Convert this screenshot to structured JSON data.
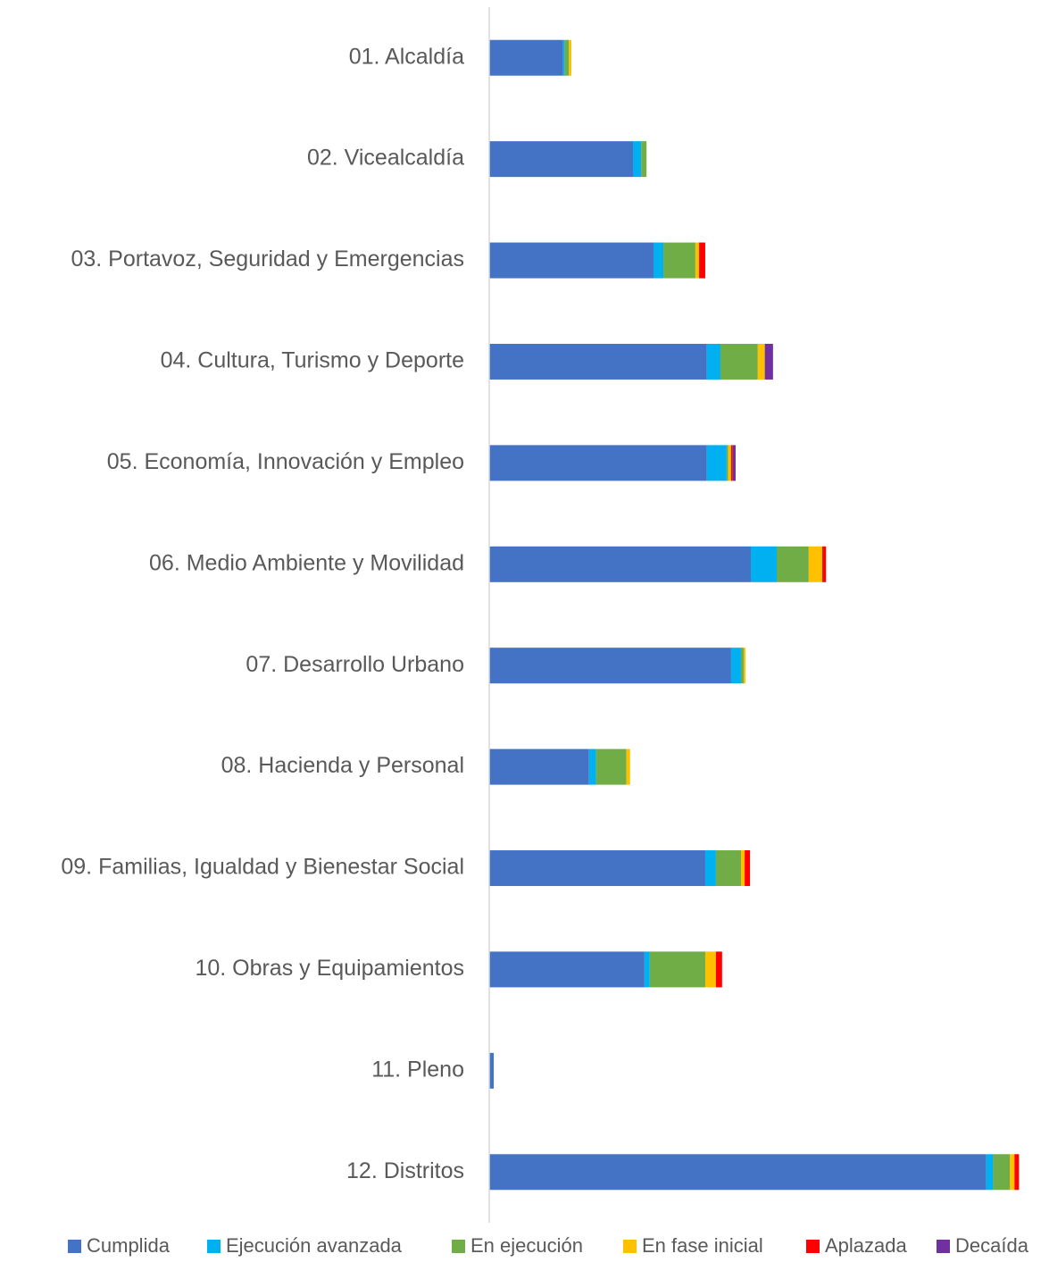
{
  "chart_data": {
    "type": "stacked_barh",
    "categories": [
      "01. Alcaldía",
      "02. Vicealcaldía",
      "03. Portavoz, Seguridad y Emergencias",
      "04. Cultura, Turismo y Deporte",
      "05. Economía, Innovación y Empleo",
      "06. Medio Ambiente y Movilidad",
      "07. Desarrollo Urbano",
      "08. Hacienda y Personal",
      "09. Familias, Igualdad y Bienestar Social",
      "10. Obras y Equipamientos",
      "11. Pleno",
      "12. Distritos"
    ],
    "series": [
      {
        "name": "Cumplida",
        "color": "#4472c4",
        "values": [
          18,
          35,
          40,
          53,
          53,
          63.7,
          58.9,
          24.3,
          52.6,
          37.8,
          1.1,
          121
        ]
      },
      {
        "name": "Ejecución avanzada",
        "color": "#00b0f0",
        "values": [
          0.4,
          2,
          2.4,
          3.3,
          4.8,
          6.3,
          2.4,
          1.7,
          2.6,
          1.3,
          0,
          1.7
        ]
      },
      {
        "name": "En ejecución",
        "color": "#70ad47",
        "values": [
          1,
          1.3,
          7.8,
          9.1,
          0.4,
          7.8,
          0.7,
          7.4,
          6.1,
          13.5,
          0,
          4.1
        ]
      },
      {
        "name": "En fase inicial",
        "color": "#ffc000",
        "values": [
          0.6,
          0,
          0.9,
          1.7,
          0.7,
          3.3,
          0.4,
          0.9,
          0.9,
          2.6,
          0,
          1.1
        ]
      },
      {
        "name": "Aplazada",
        "color": "#ff0000",
        "values": [
          0,
          0,
          1.5,
          0,
          0.4,
          0.9,
          0,
          0,
          1.3,
          1.5,
          0,
          1.1
        ]
      },
      {
        "name": "Decaída",
        "color": "#7030a0",
        "values": [
          0,
          0,
          0,
          2,
          0.7,
          0,
          0,
          0,
          0,
          0,
          0,
          0
        ]
      }
    ],
    "xlim": [
      0,
      130
    ],
    "legend": "bottom"
  }
}
